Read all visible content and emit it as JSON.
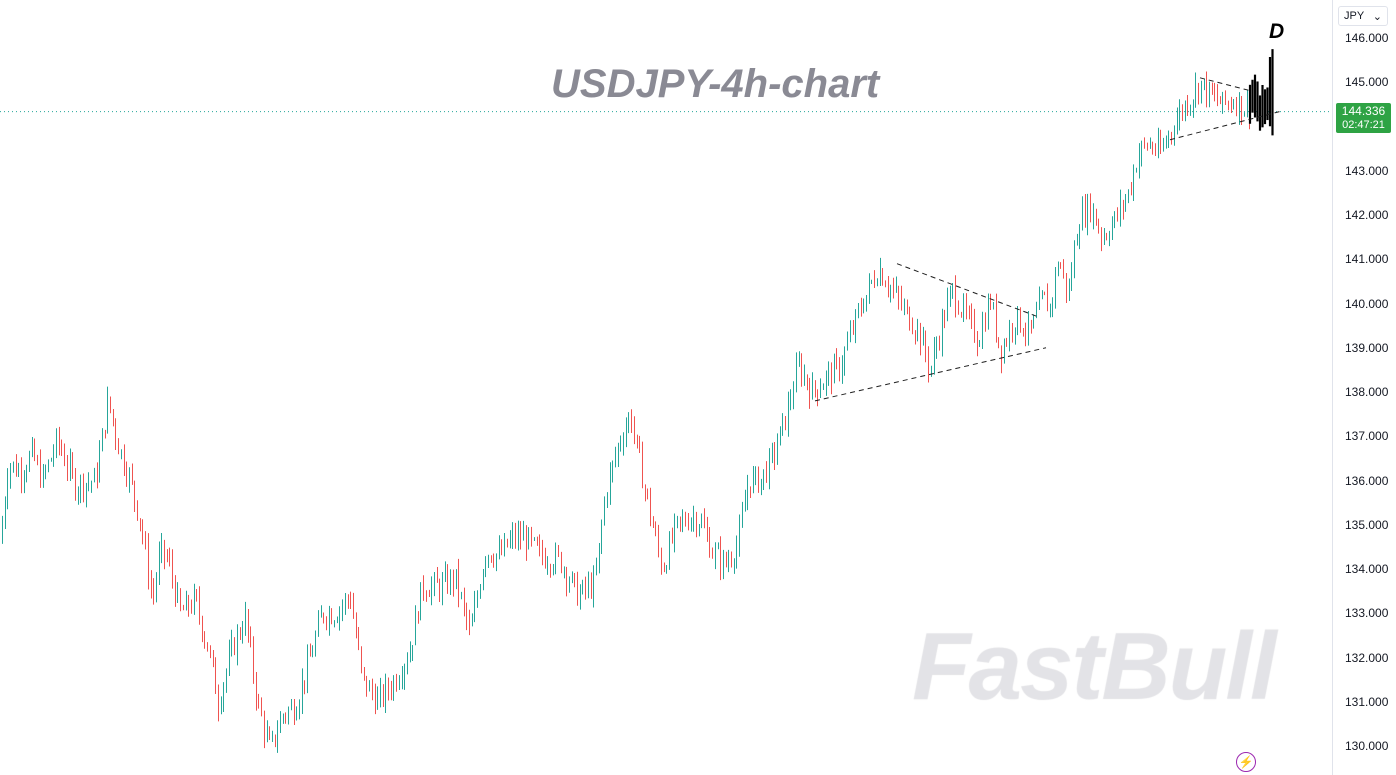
{
  "chart_data": {
    "type": "ohlc",
    "title": "USDJPY-4h-chart",
    "symbol_currency": "JPY",
    "ylim": [
      129.6,
      146.8
    ],
    "y_ticks": [
      "146.000",
      "145.000",
      "144.000",
      "143.000",
      "142.000",
      "141.000",
      "140.000",
      "139.000",
      "138.000",
      "137.000",
      "136.000",
      "135.000",
      "134.000",
      "133.000",
      "132.000",
      "131.000",
      "130.000"
    ],
    "last_price": "144.336",
    "countdown": "02:47:21",
    "annotation": "D",
    "up_color": "#26a69a",
    "down_color": "#ef5350",
    "path": [
      [
        0,
        134.6
      ],
      [
        8,
        136.4
      ],
      [
        20,
        136.2
      ],
      [
        32,
        136.6
      ],
      [
        42,
        136.0
      ],
      [
        57,
        136.9
      ],
      [
        75,
        135.9
      ],
      [
        95,
        136.0
      ],
      [
        108,
        137.8
      ],
      [
        118,
        136.8
      ],
      [
        130,
        136.0
      ],
      [
        140,
        135.1
      ],
      [
        152,
        133.3
      ],
      [
        160,
        134.4
      ],
      [
        168,
        134.2
      ],
      [
        180,
        133.0
      ],
      [
        195,
        133.3
      ],
      [
        210,
        132.0
      ],
      [
        218,
        131.0
      ],
      [
        232,
        132.2
      ],
      [
        245,
        132.9
      ],
      [
        258,
        130.9
      ],
      [
        270,
        129.9
      ],
      [
        282,
        130.7
      ],
      [
        295,
        130.9
      ],
      [
        310,
        132.0
      ],
      [
        322,
        133.0
      ],
      [
        335,
        133.0
      ],
      [
        350,
        133.4
      ],
      [
        362,
        131.5
      ],
      [
        378,
        131.0
      ],
      [
        395,
        131.5
      ],
      [
        410,
        132.2
      ],
      [
        422,
        133.6
      ],
      [
        440,
        133.6
      ],
      [
        455,
        133.8
      ],
      [
        470,
        132.5
      ],
      [
        485,
        134.4
      ],
      [
        500,
        134.3
      ],
      [
        512,
        134.7
      ],
      [
        525,
        134.7
      ],
      [
        540,
        134.3
      ],
      [
        560,
        134.2
      ],
      [
        578,
        133.4
      ],
      [
        595,
        133.7
      ],
      [
        605,
        135.7
      ],
      [
        618,
        136.8
      ],
      [
        630,
        137.5
      ],
      [
        640,
        136.3
      ],
      [
        655,
        134.7
      ],
      [
        662,
        134.0
      ],
      [
        675,
        134.9
      ],
      [
        690,
        135.2
      ],
      [
        700,
        135.1
      ],
      [
        712,
        134.4
      ],
      [
        725,
        134.1
      ],
      [
        738,
        134.6
      ],
      [
        748,
        136.0
      ],
      [
        760,
        136.0
      ],
      [
        772,
        136.5
      ],
      [
        785,
        137.4
      ],
      [
        798,
        138.6
      ],
      [
        812,
        138.0
      ],
      [
        825,
        138.3
      ],
      [
        840,
        138.6
      ],
      [
        852,
        139.4
      ],
      [
        862,
        140.0
      ],
      [
        878,
        140.8
      ],
      [
        892,
        140.3
      ],
      [
        905,
        139.8
      ],
      [
        918,
        139.4
      ],
      [
        930,
        138.5
      ],
      [
        942,
        139.6
      ],
      [
        952,
        140.3
      ],
      [
        965,
        139.7
      ],
      [
        978,
        139.2
      ],
      [
        990,
        140.1
      ],
      [
        1000,
        138.9
      ],
      [
        1015,
        139.7
      ],
      [
        1030,
        139.3
      ],
      [
        1042,
        140.1
      ],
      [
        1050,
        139.9
      ],
      [
        1058,
        141.0
      ],
      [
        1068,
        140.2
      ],
      [
        1078,
        141.9
      ],
      [
        1090,
        142.2
      ],
      [
        1102,
        141.5
      ],
      [
        1115,
        141.9
      ],
      [
        1128,
        142.5
      ],
      [
        1138,
        143.4
      ],
      [
        1148,
        143.6
      ],
      [
        1160,
        143.4
      ],
      [
        1172,
        144.0
      ],
      [
        1182,
        144.4
      ],
      [
        1192,
        144.7
      ],
      [
        1200,
        145.0
      ],
      [
        1210,
        144.7
      ],
      [
        1222,
        144.5
      ],
      [
        1234,
        144.6
      ],
      [
        1246,
        144.4
      ],
      [
        1258,
        144.6
      ],
      [
        1268,
        145.2
      ],
      [
        1275,
        144.1
      ]
    ],
    "trendlines": [
      {
        "x1": 897,
        "y1": 140.9,
        "x2": 1038,
        "y2": 139.7
      },
      {
        "x1": 815,
        "y1": 137.8,
        "x2": 1046,
        "y2": 139.0
      },
      {
        "x1": 1200,
        "y1": 145.1,
        "x2": 1252,
        "y2": 144.8
      },
      {
        "x1": 1170,
        "y1": 143.7,
        "x2": 1282,
        "y2": 144.35
      }
    ],
    "d_leg": {
      "x_start": 1250,
      "x_end": 1274,
      "high": 145.75,
      "low": 143.8
    }
  },
  "watermark": "FastBull",
  "ui": {
    "flash_icon": "⚡"
  }
}
